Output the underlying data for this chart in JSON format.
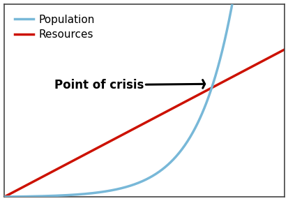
{
  "population_color": "#78b8d8",
  "resources_color": "#cc1100",
  "background_color": "#ffffff",
  "annotation_text": "Point of crisis",
  "annotation_fontsize": 12,
  "annotation_fontweight": "bold",
  "legend_population": "Population",
  "legend_resources": "Resources",
  "legend_fontsize": 11,
  "line_width": 2.5,
  "border_color": "#444444",
  "border_lw": 1.2
}
